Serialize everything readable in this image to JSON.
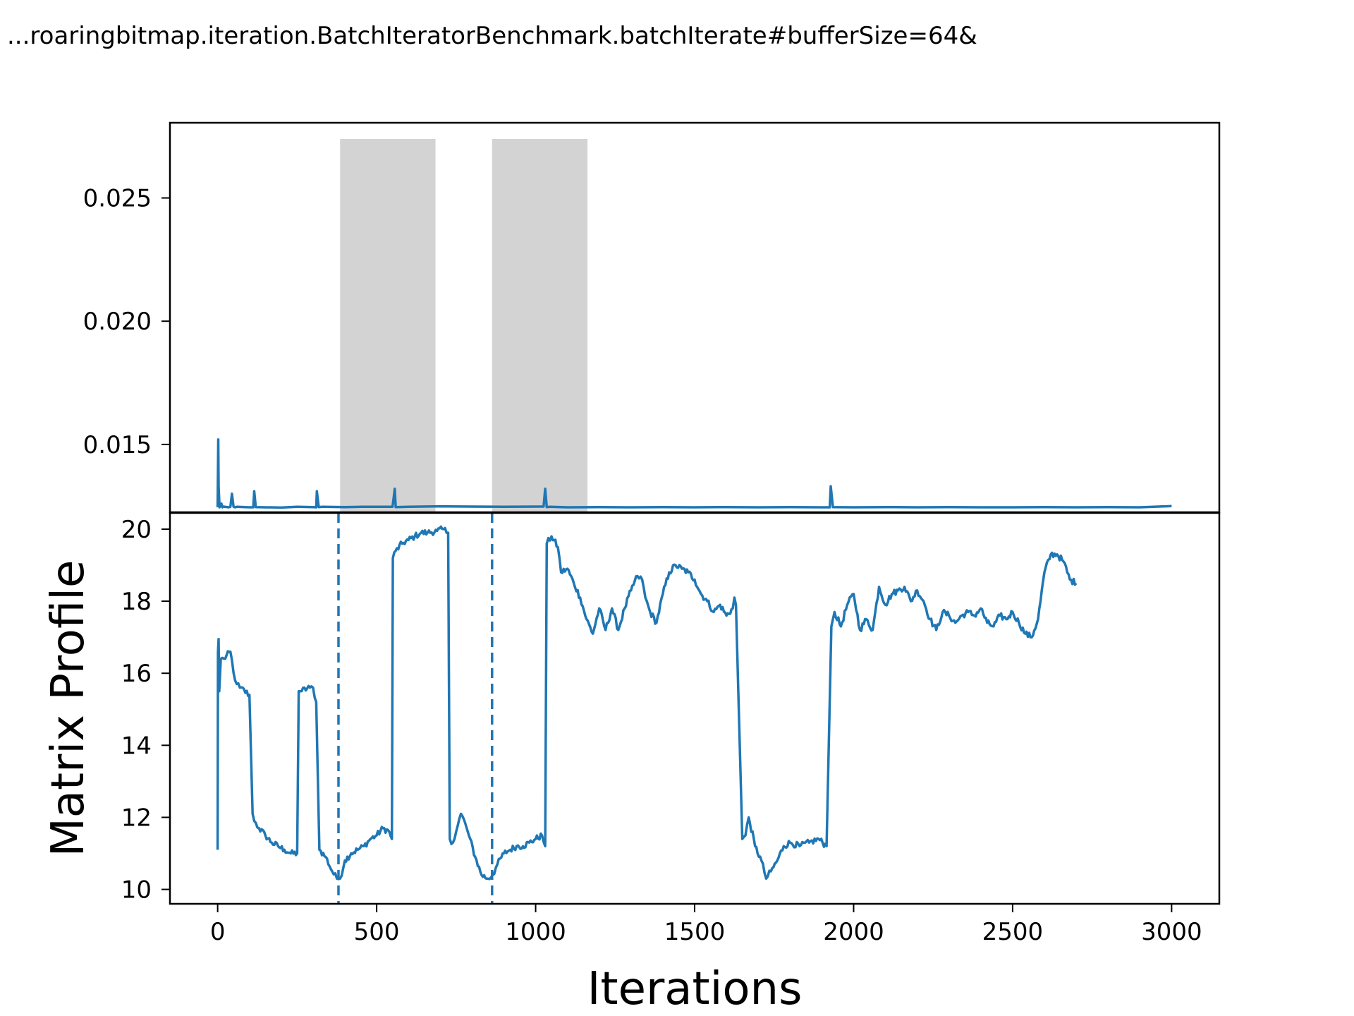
{
  "chart_data": [
    {
      "type": "line",
      "title": "...roaringbitmap.iteration.BatchIteratorBenchmark.batchIterate#bufferSize=64&",
      "xlabel": "",
      "ylabel": "",
      "xlim": [
        -150,
        3150
      ],
      "ylim": [
        0.01225,
        0.02805
      ],
      "yticks": [
        0.015,
        0.02,
        0.025
      ],
      "ytick_labels": [
        "0.015",
        "0.020",
        "0.025"
      ],
      "grid": false,
      "shaded_regions": [
        {
          "x_start": 385,
          "x_end": 685
        },
        {
          "x_start": 863,
          "x_end": 1163
        }
      ],
      "series": [
        {
          "color": "#1f77b4",
          "baseline": 0.01245,
          "x": [
            0,
            2,
            3,
            6,
            9,
            12,
            15,
            18,
            35,
            40,
            45,
            50,
            55,
            60,
            100,
            112,
            115,
            120,
            200,
            250,
            300,
            310,
            312,
            318,
            330,
            400,
            450,
            550,
            557,
            560,
            600,
            700,
            800,
            900,
            1025,
            1030,
            1035,
            1045,
            1100,
            1200,
            1300,
            1400,
            1500,
            1600,
            1700,
            1800,
            1900,
            1925,
            1928,
            1935,
            2000,
            2100,
            2200,
            2300,
            2400,
            2500,
            2600,
            2700,
            2800,
            2900,
            3000
          ],
          "y": [
            0.01245,
            0.0152,
            0.0133,
            0.01245,
            0.0125,
            0.0126,
            0.01245,
            0.01248,
            0.01245,
            0.01247,
            0.013,
            0.01247,
            0.01245,
            0.01247,
            0.01245,
            0.01245,
            0.0131,
            0.01246,
            0.01244,
            0.01247,
            0.01246,
            0.01245,
            0.0131,
            0.01246,
            0.01247,
            0.01246,
            0.01247,
            0.01247,
            0.0132,
            0.01246,
            0.01247,
            0.01249,
            0.01248,
            0.01247,
            0.01248,
            0.0132,
            0.01246,
            0.01247,
            0.01245,
            0.01246,
            0.01245,
            0.01246,
            0.01245,
            0.01246,
            0.01245,
            0.01246,
            0.01245,
            0.01245,
            0.0133,
            0.01246,
            0.01245,
            0.01246,
            0.01245,
            0.01246,
            0.01245,
            0.01245,
            0.01246,
            0.01245,
            0.01246,
            0.01245,
            0.0125
          ]
        }
      ]
    },
    {
      "type": "line",
      "xlabel": "Iterations",
      "ylabel": "Matrix Profile",
      "xlim": [
        -150,
        3150
      ],
      "ylim": [
        9.6,
        20.45
      ],
      "xticks": [
        0,
        500,
        1000,
        1500,
        2000,
        2500,
        3000
      ],
      "xtick_labels": [
        "0",
        "500",
        "1000",
        "1500",
        "2000",
        "2500",
        "3000"
      ],
      "yticks": [
        10,
        12,
        14,
        16,
        18,
        20
      ],
      "ytick_labels": [
        "10",
        "12",
        "14",
        "16",
        "18",
        "20"
      ],
      "grid": false,
      "vertical_lines": [
        {
          "x": 380,
          "style": "dashed"
        },
        {
          "x": 863,
          "style": "dashed"
        }
      ],
      "series": [
        {
          "color": "#1f77b4",
          "x": [
            0,
            1,
            3,
            5,
            10,
            20,
            40,
            55,
            60,
            70,
            100,
            110,
            115,
            130,
            150,
            170,
            190,
            210,
            230,
            250,
            255,
            260,
            290,
            300,
            310,
            320,
            340,
            360,
            375,
            385,
            400,
            420,
            440,
            460,
            480,
            500,
            520,
            540,
            548,
            551,
            560,
            580,
            600,
            620,
            640,
            660,
            690,
            710,
            725,
            730,
            740,
            750,
            765,
            780,
            790,
            810,
            830,
            850,
            865,
            880,
            900,
            920,
            940,
            960,
            980,
            1000,
            1020,
            1030,
            1035,
            1050,
            1070,
            1080,
            1100,
            1120,
            1140,
            1160,
            1180,
            1200,
            1220,
            1240,
            1260,
            1280,
            1300,
            1320,
            1335,
            1345,
            1360,
            1380,
            1400,
            1420,
            1440,
            1460,
            1480,
            1500,
            1520,
            1540,
            1560,
            1580,
            1600,
            1620,
            1625,
            1630,
            1650,
            1660,
            1670,
            1690,
            1710,
            1725,
            1740,
            1760,
            1780,
            1800,
            1830,
            1860,
            1890,
            1915,
            1930,
            1935,
            1940,
            1960,
            1980,
            2000,
            2020,
            2040,
            2060,
            2080,
            2100,
            2120,
            2140,
            2160,
            2180,
            2200,
            2220,
            2240,
            2260,
            2280,
            2300,
            2320,
            2340,
            2360,
            2380,
            2400,
            2420,
            2440,
            2460,
            2480,
            2500,
            2520,
            2540,
            2560,
            2580,
            2600,
            2620,
            2640,
            2660,
            2680,
            2700
          ],
          "y": [
            11.1,
            16.6,
            16.95,
            15.5,
            16.4,
            16.4,
            16.6,
            15.8,
            15.7,
            15.6,
            15.4,
            12.1,
            11.9,
            11.7,
            11.5,
            11.3,
            11.2,
            11.1,
            11.0,
            11.0,
            15.5,
            15.5,
            15.6,
            15.6,
            15.2,
            11.1,
            10.9,
            10.5,
            10.3,
            10.3,
            10.8,
            11.0,
            11.1,
            11.2,
            11.4,
            11.5,
            11.7,
            11.6,
            11.4,
            19.2,
            19.4,
            19.6,
            19.7,
            19.8,
            19.9,
            19.9,
            19.95,
            20.0,
            19.9,
            11.4,
            11.3,
            11.6,
            12.1,
            11.8,
            11.5,
            10.9,
            10.4,
            10.3,
            10.4,
            10.7,
            11.0,
            11.1,
            11.2,
            11.2,
            11.3,
            11.4,
            11.5,
            11.2,
            19.6,
            19.8,
            19.5,
            18.8,
            18.9,
            18.5,
            18.1,
            17.5,
            17.1,
            17.8,
            17.2,
            17.8,
            17.2,
            17.8,
            18.3,
            18.7,
            18.6,
            18.1,
            17.7,
            17.4,
            18.2,
            18.8,
            19.0,
            18.9,
            18.8,
            18.6,
            18.2,
            18.0,
            17.7,
            17.9,
            17.6,
            17.8,
            18.1,
            17.9,
            11.4,
            11.5,
            12.0,
            11.2,
            10.8,
            10.3,
            10.5,
            10.8,
            11.2,
            11.3,
            11.2,
            11.3,
            11.4,
            11.2,
            17.3,
            17.5,
            17.7,
            17.3,
            17.9,
            18.2,
            17.2,
            17.5,
            17.2,
            18.4,
            17.9,
            18.2,
            18.3,
            18.4,
            18.0,
            18.3,
            18.0,
            17.5,
            17.2,
            17.7,
            17.6,
            17.4,
            17.6,
            17.7,
            17.6,
            17.8,
            17.4,
            17.3,
            17.6,
            17.5,
            17.7,
            17.4,
            17.1,
            17.0,
            17.5,
            18.8,
            19.3,
            19.3,
            19.1,
            18.6,
            18.5
          ],
          "dense": true
        }
      ]
    }
  ]
}
